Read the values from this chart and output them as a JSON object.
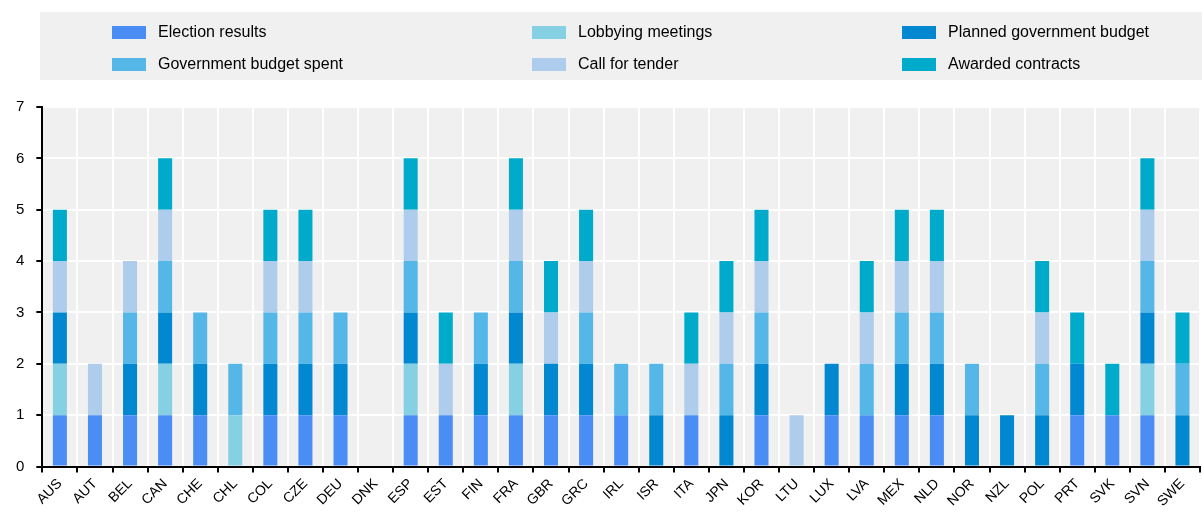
{
  "chart_data": {
    "type": "bar",
    "stacked": true,
    "legend": "top",
    "grid": true,
    "ylim": [
      0,
      7
    ],
    "yticks": [
      0,
      1,
      2,
      3,
      4,
      5,
      6,
      7
    ],
    "categories": [
      "AUS",
      "AUT",
      "BEL",
      "CAN",
      "CHE",
      "CHL",
      "COL",
      "CZE",
      "DEU",
      "DNK",
      "ESP",
      "EST",
      "FIN",
      "FRA",
      "GBR",
      "GRC",
      "IRL",
      "ISR",
      "ITA",
      "JPN",
      "KOR",
      "LTU",
      "LUX",
      "LVA",
      "MEX",
      "NLD",
      "NOR",
      "NZL",
      "POL",
      "PRT",
      "SVK",
      "SVN",
      "SWE"
    ],
    "series": [
      {
        "name": "Election results",
        "color": "#4a8ef5",
        "values": [
          1,
          1,
          1,
          1,
          1,
          0,
          1,
          1,
          1,
          0,
          1,
          1,
          1,
          1,
          1,
          1,
          1,
          0,
          1,
          0,
          1,
          0,
          1,
          1,
          1,
          1,
          0,
          0,
          0,
          1,
          1,
          1,
          0
        ]
      },
      {
        "name": "Lobbying meetings",
        "color": "#85d0e3",
        "values": [
          1,
          0,
          0,
          1,
          0,
          1,
          0,
          0,
          0,
          0,
          1,
          0,
          0,
          1,
          0,
          0,
          0,
          0,
          0,
          0,
          0,
          0,
          0,
          0,
          0,
          0,
          0,
          0,
          0,
          0,
          0,
          1,
          0
        ]
      },
      {
        "name": "Planned government budget",
        "color": "#0288d1",
        "values": [
          1,
          0,
          1,
          1,
          1,
          0,
          1,
          1,
          1,
          0,
          1,
          0,
          1,
          1,
          1,
          1,
          0,
          1,
          0,
          1,
          1,
          0,
          1,
          0,
          1,
          1,
          1,
          1,
          1,
          1,
          0,
          1,
          1
        ]
      },
      {
        "name": "Government budget spent",
        "color": "#55b6e8",
        "values": [
          0,
          0,
          1,
          1,
          1,
          1,
          1,
          1,
          1,
          0,
          1,
          0,
          1,
          1,
          0,
          1,
          1,
          1,
          0,
          1,
          1,
          0,
          0,
          1,
          1,
          1,
          1,
          0,
          1,
          0,
          0,
          1,
          1
        ]
      },
      {
        "name": "Call for tender",
        "color": "#aecdec",
        "values": [
          1,
          1,
          1,
          1,
          0,
          0,
          1,
          1,
          0,
          0,
          1,
          1,
          0,
          1,
          1,
          1,
          0,
          0,
          1,
          1,
          1,
          1,
          0,
          1,
          1,
          1,
          0,
          0,
          1,
          0,
          0,
          1,
          0
        ]
      },
      {
        "name": "Awarded contracts",
        "color": "#00aacb",
        "values": [
          1,
          0,
          0,
          1,
          0,
          0,
          1,
          1,
          0,
          0,
          1,
          1,
          0,
          1,
          1,
          1,
          0,
          0,
          1,
          1,
          1,
          0,
          0,
          1,
          1,
          1,
          0,
          0,
          1,
          1,
          1,
          1,
          1
        ]
      }
    ]
  }
}
